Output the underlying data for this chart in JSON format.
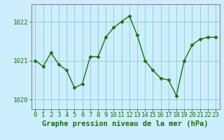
{
  "x": [
    0,
    1,
    2,
    3,
    4,
    5,
    6,
    7,
    8,
    9,
    10,
    11,
    12,
    13,
    14,
    15,
    16,
    17,
    18,
    19,
    20,
    21,
    22,
    23
  ],
  "y": [
    1021.0,
    1020.85,
    1021.2,
    1020.9,
    1020.75,
    1020.3,
    1020.4,
    1021.1,
    1021.1,
    1021.6,
    1021.85,
    1022.0,
    1022.15,
    1021.65,
    1021.0,
    1020.75,
    1020.55,
    1020.5,
    1020.1,
    1021.0,
    1021.4,
    1021.55,
    1021.6,
    1021.6
  ],
  "line_color": "#1a6e1a",
  "marker_color": "#1a6e1a",
  "bg_color": "#cceeff",
  "grid_color": "#99cccc",
  "axis_color": "#1a6e1a",
  "border_color": "#888888",
  "xlabel": "Graphe pression niveau de la mer (hPa)",
  "xlabel_fontsize": 7.5,
  "tick_fontsize": 6.5,
  "ylim": [
    1019.75,
    1022.45
  ],
  "yticks": [
    1020,
    1021,
    1022
  ],
  "xticks": [
    0,
    1,
    2,
    3,
    4,
    5,
    6,
    7,
    8,
    9,
    10,
    11,
    12,
    13,
    14,
    15,
    16,
    17,
    18,
    19,
    20,
    21,
    22,
    23
  ],
  "marker_size": 2.5,
  "line_width": 1.0
}
